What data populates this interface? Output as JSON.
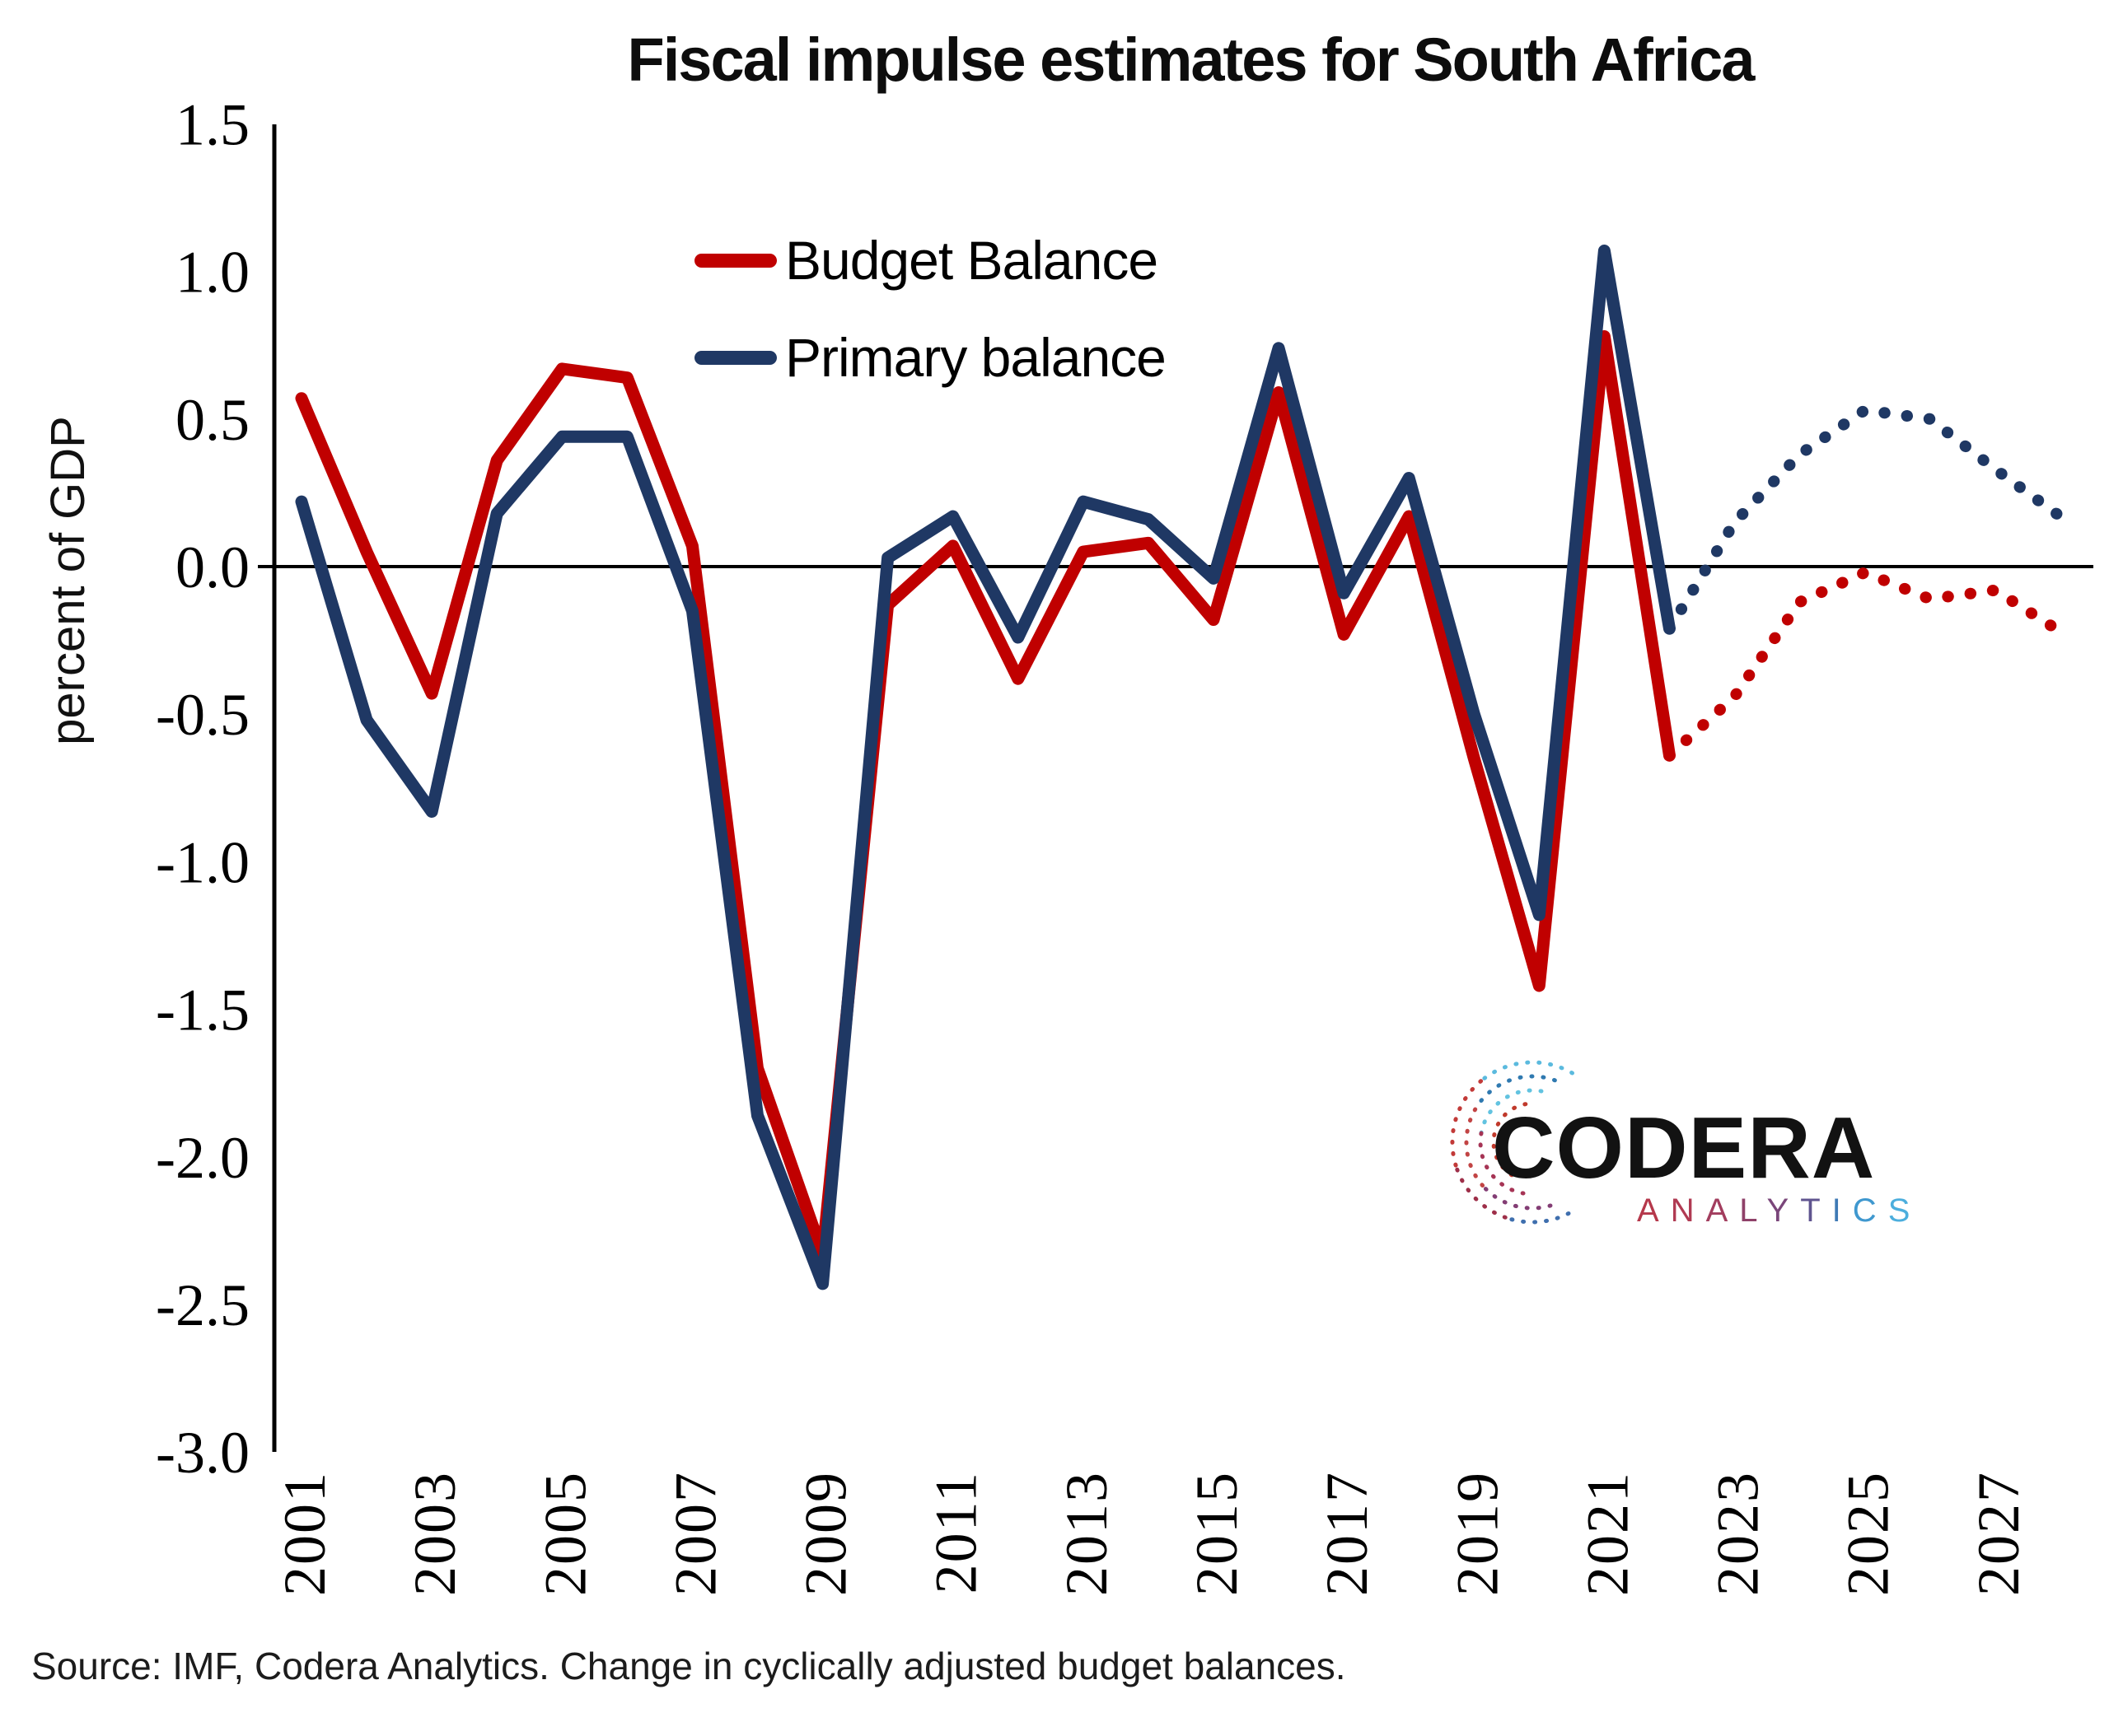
{
  "title": "Fiscal impulse estimates for South Africa",
  "y_axis_label": "percent of GDP",
  "source_note": "Source: IMF, Codera Analytics. Change in cyclically adjusted budget balances.",
  "legend": {
    "items": [
      {
        "label": "Budget Balance",
        "color": "#c00000"
      },
      {
        "label": "Primary balance",
        "color": "#1f3864"
      }
    ]
  },
  "logo": {
    "name": "CODERA",
    "subtitle": "ANALYTICS",
    "subtitle_colors": [
      "#b5384b",
      "#b03a52",
      "#a23d5e",
      "#8f4169",
      "#7a467a",
      "#5f548f",
      "#3f7ab5",
      "#3f98cf",
      "#4caedd"
    ],
    "icon_colors": [
      "#5bbade",
      "#c23a38",
      "#9e2f49",
      "#3f6fae",
      "#2f79b0",
      "#c24444",
      "#833d74",
      "#62c3e0",
      "#a63455",
      "#c0392b"
    ]
  },
  "chart_data": {
    "type": "line",
    "title": "Fiscal impulse estimates for South Africa",
    "xlabel": "",
    "ylabel": "percent of GDP",
    "ylim": [
      -3.0,
      1.5
    ],
    "y_ticks": [
      "1.5",
      "1.0",
      "0.5",
      "0.0",
      "-0.5",
      "-1.0",
      "-1.5",
      "-2.0",
      "-2.5",
      "-3.0"
    ],
    "x_range": [
      2001,
      2028
    ],
    "x_tick_years": [
      2001,
      2003,
      2005,
      2007,
      2009,
      2011,
      2013,
      2015,
      2017,
      2019,
      2021,
      2023,
      2025,
      2027
    ],
    "grid": false,
    "zero_line": true,
    "legend_position": "upper center",
    "series": [
      {
        "name": "Budget Balance",
        "color": "#c00000",
        "line_style": "solid",
        "x": [
          2001,
          2002,
          2003,
          2004,
          2005,
          2006,
          2007,
          2008,
          2009,
          2010,
          2011,
          2012,
          2013,
          2014,
          2015,
          2016,
          2017,
          2018,
          2019,
          2020,
          2021,
          2022
        ],
        "values": [
          0.57,
          0.05,
          -0.43,
          0.36,
          0.67,
          0.64,
          0.07,
          -1.7,
          -2.33,
          -0.13,
          0.07,
          -0.38,
          0.05,
          0.08,
          -0.18,
          0.59,
          -0.23,
          0.17,
          -0.65,
          -1.42,
          0.78,
          -0.64
        ]
      },
      {
        "name": "Budget Balance forecast",
        "color": "#c00000",
        "line_style": "dotted",
        "x": [
          2022,
          2023,
          2024,
          2025,
          2026,
          2027,
          2028
        ],
        "values": [
          -0.64,
          -0.44,
          -0.12,
          -0.02,
          -0.11,
          -0.08,
          -0.22
        ]
      },
      {
        "name": "Primary balance",
        "color": "#1f3864",
        "line_style": "solid",
        "x": [
          2001,
          2002,
          2003,
          2004,
          2005,
          2006,
          2007,
          2008,
          2009,
          2010,
          2011,
          2012,
          2013,
          2014,
          2015,
          2016,
          2017,
          2018,
          2019,
          2020,
          2021,
          2022
        ],
        "values": [
          0.22,
          -0.52,
          -0.83,
          0.18,
          0.44,
          0.44,
          -0.15,
          -1.86,
          -2.43,
          0.03,
          0.17,
          -0.24,
          0.22,
          0.16,
          -0.04,
          0.74,
          -0.09,
          0.3,
          -0.5,
          -1.18,
          1.07,
          -0.21
        ]
      },
      {
        "name": "Primary balance forecast",
        "color": "#1f3864",
        "line_style": "dotted",
        "x": [
          2022,
          2023,
          2024,
          2025,
          2026,
          2027,
          2028
        ],
        "values": [
          -0.21,
          0.15,
          0.38,
          0.53,
          0.5,
          0.33,
          0.17
        ]
      }
    ]
  }
}
